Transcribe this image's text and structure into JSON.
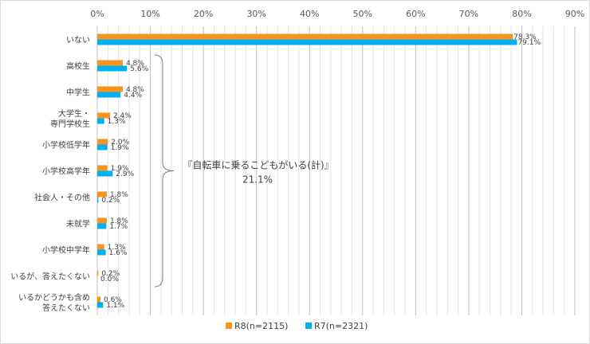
{
  "chart_data": {
    "type": "bar",
    "orientation": "horizontal",
    "title": "",
    "xlabel": "",
    "ylabel": "",
    "x_ticks": [
      "0%",
      "10%",
      "20%",
      "30%",
      "40%",
      "50%",
      "60%",
      "70%",
      "80%",
      "90%"
    ],
    "xlim": [
      0,
      90
    ],
    "grid": true,
    "legend_position": "bottom",
    "categories": [
      [
        "いない"
      ],
      [
        "高校生"
      ],
      [
        "中学生"
      ],
      [
        "大学生・",
        "専門学校生"
      ],
      [
        "小学校低学年"
      ],
      [
        "小学校高学年"
      ],
      [
        "社会人・その他"
      ],
      [
        "未就学"
      ],
      [
        "小学校中学年"
      ],
      [
        "いるが、答えたくない"
      ],
      [
        "いるかどうかも含め",
        "答えたくない"
      ]
    ],
    "series": [
      {
        "name": "R8(n=2115)",
        "color": "#f7931e",
        "values": [
          78.3,
          4.8,
          4.8,
          2.4,
          2.0,
          1.9,
          1.8,
          1.8,
          1.3,
          0.2,
          0.6
        ],
        "labels": [
          "78.3%",
          "4.8%",
          "4.8%",
          "2.4%",
          "2.0%",
          "1.9%",
          "1.8%",
          "1.8%",
          "1.3%",
          "0.2%",
          "0.6%"
        ]
      },
      {
        "name": "R7(n=2321)",
        "color": "#00b0f0",
        "values": [
          79.1,
          5.6,
          4.4,
          1.3,
          1.9,
          2.9,
          0.2,
          1.7,
          1.6,
          0.0,
          1.1
        ],
        "labels": [
          "79.1%",
          "5.6%",
          "4.4%",
          "1.3%",
          "1.9%",
          "2.9%",
          "0.2%",
          "1.7%",
          "1.6%",
          "0.0%",
          "1.1%"
        ]
      }
    ],
    "annotation": {
      "line1": "『自転車に乗るこどもがいる(計)』",
      "line2": "21.1%"
    }
  }
}
